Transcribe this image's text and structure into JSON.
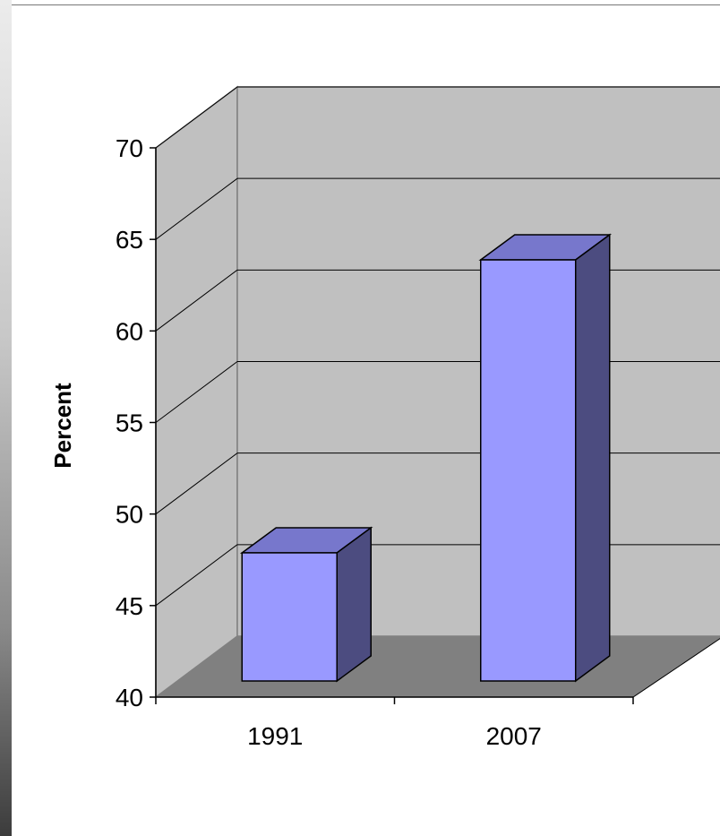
{
  "chart_data": {
    "type": "bar",
    "categories": [
      "1991",
      "2007"
    ],
    "values": [
      47,
      63
    ],
    "ylabel": "Percent",
    "xlabel": "",
    "ylim": [
      40,
      70
    ],
    "yticks": [
      "40",
      "45",
      "50",
      "55",
      "60",
      "65",
      "70"
    ],
    "grid": true,
    "legend": "none",
    "style": "3d",
    "colors": {
      "bar_front": "#9999ff",
      "bar_top": "#7777cc",
      "bar_side": "#4c4c80",
      "back_wall": "#c0c0c0",
      "side_wall": "#c0c0c0",
      "floor": "#808080"
    }
  }
}
